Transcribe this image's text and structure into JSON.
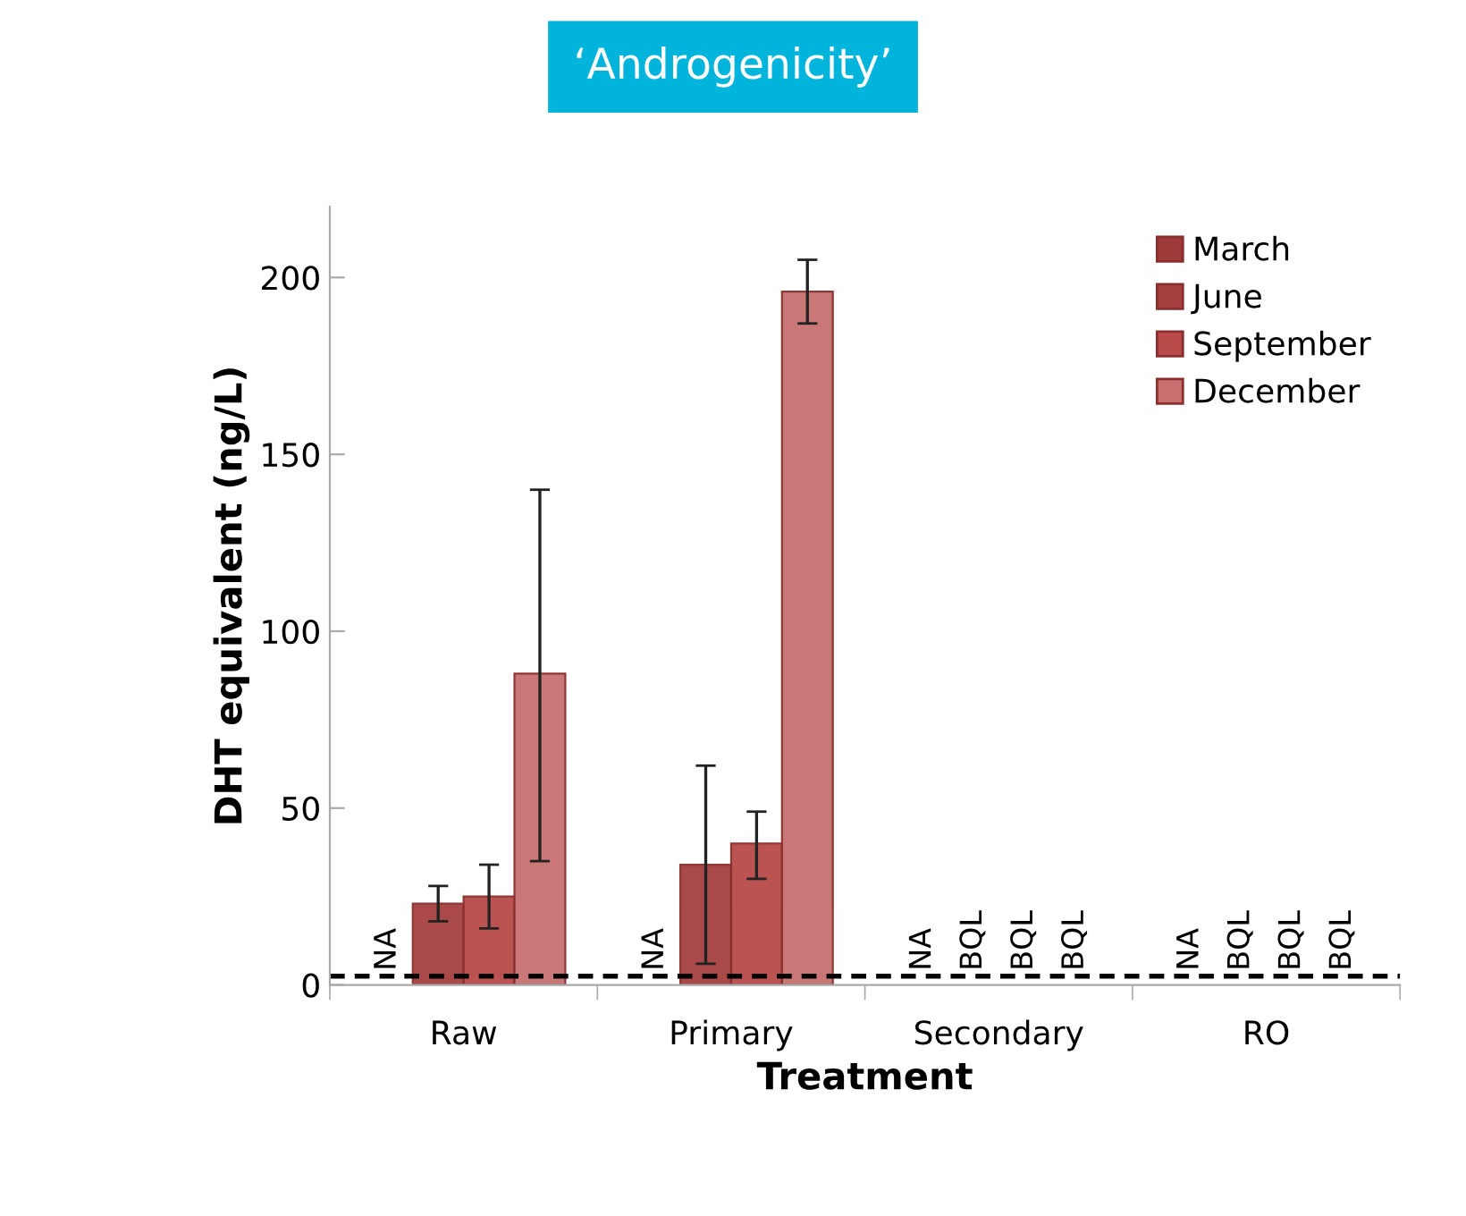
{
  "chart_data": {
    "type": "bar",
    "title": "‘Androgenicity’",
    "xlabel": "Treatment",
    "ylabel": "DHT equivalent (ng/L)",
    "categories": [
      "Raw",
      "Primary",
      "Secondary",
      "RO"
    ],
    "series": [
      {
        "name": "March",
        "color": "#9e3a3a",
        "values": [
          null,
          null,
          null,
          null
        ],
        "value_labels": [
          "NA",
          "NA",
          "NA",
          "NA"
        ]
      },
      {
        "name": "June",
        "color": "#a54040",
        "values": [
          23,
          34,
          null,
          null
        ],
        "errors": [
          [
            18,
            28
          ],
          [
            6,
            62
          ],
          null,
          null
        ],
        "value_labels": [
          null,
          null,
          "BQL",
          "BQL"
        ]
      },
      {
        "name": "September",
        "color": "#b84a4a",
        "values": [
          25,
          40,
          null,
          null
        ],
        "errors": [
          [
            16,
            34
          ],
          [
            30,
            49
          ],
          null,
          null
        ],
        "value_labels": [
          null,
          null,
          "BQL",
          "BQL"
        ]
      },
      {
        "name": "December",
        "color": "#c87070",
        "values": [
          88,
          196,
          null,
          null
        ],
        "errors": [
          [
            35,
            140
          ],
          [
            187,
            205
          ],
          null,
          null
        ],
        "value_labels": [
          null,
          null,
          "BQL",
          "BQL"
        ]
      }
    ],
    "ylim": [
      0,
      220
    ],
    "yticks": [
      0,
      50,
      100,
      150,
      200
    ],
    "ref_lines": [
      {
        "axis": "y",
        "value": 2.5,
        "color": "#000000",
        "line_style": "dashed"
      }
    ],
    "legend": "top right",
    "grid": false
  }
}
